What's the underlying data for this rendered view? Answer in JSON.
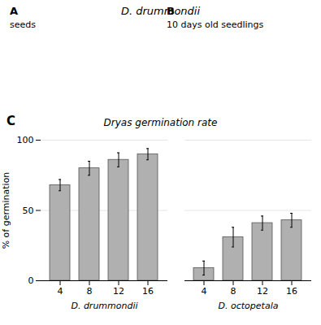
{
  "chart_data": {
    "type": "bar",
    "title": "Dryas germination rate",
    "ylabel": "% of germination",
    "color": "#b0b0b0",
    "ylim": [
      0,
      100
    ],
    "yticks": [
      0,
      50,
      100
    ],
    "grid": true,
    "groups": [
      {
        "name": "D. drummondii",
        "categories": [
          "4",
          "8",
          "12",
          "16"
        ],
        "values": [
          68,
          80,
          86,
          90
        ],
        "errors": [
          4,
          5,
          5,
          4
        ]
      },
      {
        "name": "D. octopetala",
        "categories": [
          "4",
          "8",
          "12",
          "16"
        ],
        "values": [
          9,
          31,
          41,
          43
        ],
        "errors": [
          5,
          7,
          5,
          5
        ]
      }
    ],
    "annotations": [
      {
        "text": "D. drummondii"
      },
      {
        "text": "A"
      },
      {
        "text": "seeds"
      },
      {
        "text": "B"
      },
      {
        "text": "10 days old seedlings"
      },
      {
        "text": "C"
      }
    ]
  }
}
